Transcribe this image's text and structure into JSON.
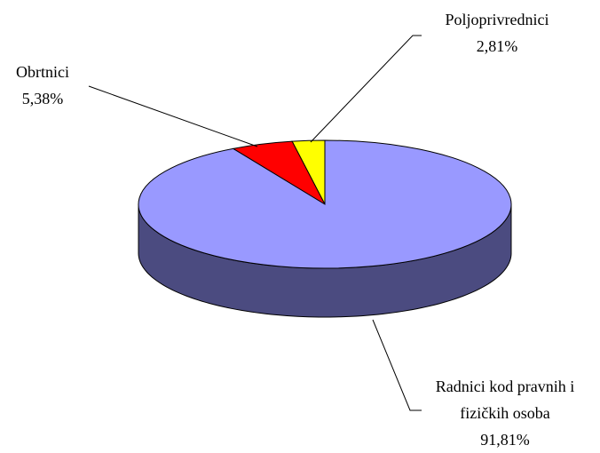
{
  "chart_data": {
    "type": "pie3d",
    "categories": [
      "Radnici kod pravnih i fizičkih osoba",
      "Obrtnici",
      "Poljoprivrednici"
    ],
    "values": [
      91.81,
      5.38,
      2.81
    ],
    "value_labels": [
      "91,81%",
      "5,38%",
      "2,81%"
    ],
    "colors": [
      "#9999ff",
      "#ff0000",
      "#ffff00"
    ],
    "side_colors": [
      "#4b4b80",
      "#800000",
      "#808000"
    ]
  }
}
